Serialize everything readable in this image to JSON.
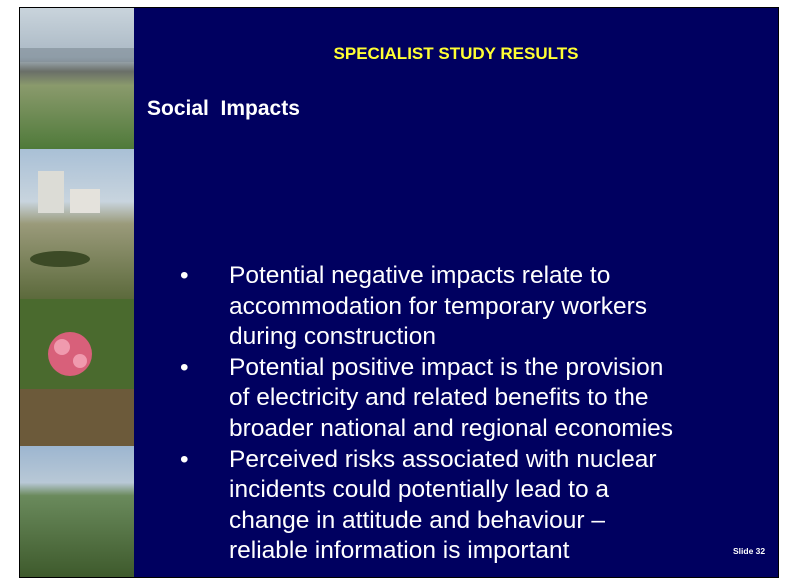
{
  "header": {
    "title": "SPECIALIST STUDY RESULTS"
  },
  "heading": "Social  Impacts",
  "bullets": [
    [
      "Potential negative impacts relate to",
      "accommodation for temporary workers",
      "during construction"
    ],
    [
      "Potential positive impact is the provision",
      "of electricity and related benefits to the",
      "broader national and regional economies"
    ],
    [
      "Perceived risks associated with nuclear",
      "incidents could potentially lead to a",
      "change in attitude and behaviour –",
      "reliable information is important"
    ]
  ],
  "footer": {
    "slide_number": "Slide 32"
  }
}
